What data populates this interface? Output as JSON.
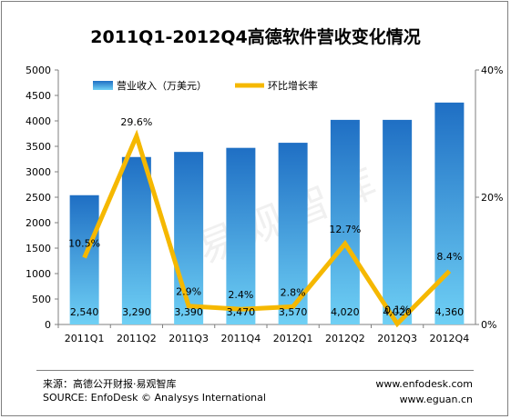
{
  "chart_data": {
    "type": "bar",
    "title": "2011Q1-2012Q4高德软件营收变化情况",
    "categories": [
      "2011Q1",
      "2011Q2",
      "2011Q3",
      "2011Q4",
      "2012Q1",
      "2012Q2",
      "2012Q3",
      "2012Q4"
    ],
    "series": [
      {
        "name": "营业收入（万美元）",
        "type": "bar",
        "axis": "left",
        "values": [
          2540,
          3290,
          3390,
          3470,
          3570,
          4020,
          4020,
          4360
        ],
        "labels": [
          "2,540",
          "3,290",
          "3,390",
          "3,470",
          "3,570",
          "4,020",
          "4,020",
          "4,360"
        ]
      },
      {
        "name": "环比增长率",
        "type": "line",
        "axis": "right",
        "values": [
          10.5,
          29.6,
          2.9,
          2.4,
          2.8,
          12.7,
          0.1,
          8.4
        ],
        "labels": [
          "10.5%",
          "29.6%",
          "2.9%",
          "2.4%",
          "2.8%",
          "12.7%",
          "0.1%",
          "8.4%"
        ]
      }
    ],
    "yleft": {
      "min": 0,
      "max": 5000,
      "ticks": [
        "0",
        "500",
        "1000",
        "1500",
        "2000",
        "2500",
        "3000",
        "3500",
        "4000",
        "4500",
        "5000"
      ]
    },
    "yright": {
      "min": 0,
      "max": 40,
      "ticks": [
        "0%",
        "20%",
        "40%"
      ]
    },
    "legend_position": "top",
    "grid": false,
    "colors": {
      "bar_top": "#1f6fc4",
      "bar_bottom": "#6fd0f5",
      "line": "#f5b800"
    }
  },
  "footer": {
    "source_cn": "来源：高德公开财报·易观智库",
    "source_en": "SOURCE: EnfoDesk © Analysys International",
    "site1": "www.enfodesk.com",
    "site2": "www.eguan.cn"
  },
  "watermark": "易观智库"
}
